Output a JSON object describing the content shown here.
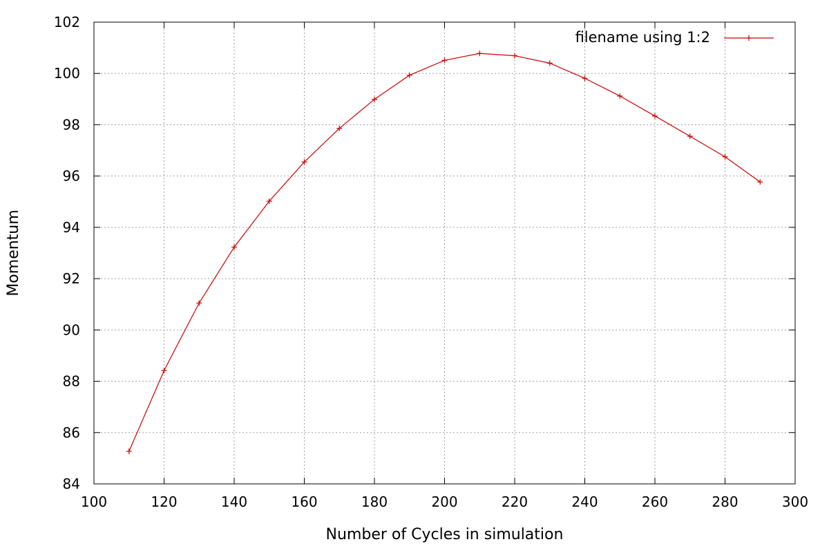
{
  "chart_data": {
    "type": "line",
    "title": "",
    "xlabel": "Number of Cycles in simulation",
    "ylabel": "Momentum",
    "xlim": [
      100,
      300
    ],
    "ylim": [
      84,
      102
    ],
    "xticks": [
      100,
      120,
      140,
      160,
      180,
      200,
      220,
      240,
      260,
      280,
      300
    ],
    "yticks": [
      84,
      86,
      88,
      90,
      92,
      94,
      96,
      98,
      100,
      102
    ],
    "grid": true,
    "legend_position": "top-right",
    "series": [
      {
        "name": "filename using 1:2",
        "color": "#cc0000",
        "marker": "plus",
        "x": [
          110,
          120,
          130,
          140,
          150,
          160,
          170,
          180,
          190,
          200,
          210,
          220,
          230,
          240,
          250,
          260,
          270,
          280,
          290
        ],
        "y": [
          85.27,
          88.42,
          91.05,
          93.23,
          95.02,
          96.55,
          97.86,
          98.99,
          99.93,
          100.51,
          100.78,
          100.69,
          100.4,
          99.81,
          99.12,
          98.34,
          97.55,
          96.75,
          95.77
        ]
      }
    ]
  }
}
